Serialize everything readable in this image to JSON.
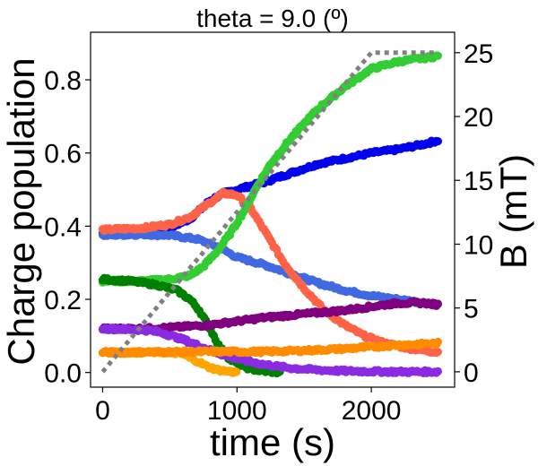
{
  "chart_data": {
    "type": "scatter",
    "title": "theta = 9.0 (º)",
    "xlabel": "time (s)",
    "ylabel": "Charge population",
    "y2label": "B (mT)",
    "xlim": [
      -90,
      2620
    ],
    "ylim": [
      -0.04,
      0.93
    ],
    "y2lim": [
      -1.2,
      26.6
    ],
    "xticks": [
      0,
      1000,
      2000
    ],
    "yticks": [
      0.0,
      0.2,
      0.4,
      0.6,
      0.8
    ],
    "y2ticks": [
      0,
      5,
      10,
      15,
      20,
      25
    ],
    "xtick_labels": [
      "0",
      "1000",
      "2000"
    ],
    "ytick_labels": [
      "0.0",
      "0.2",
      "0.4",
      "0.6",
      "0.8"
    ],
    "y2tick_labels": [
      "0",
      "5",
      "10",
      "15",
      "20",
      "25"
    ],
    "field_ramp": {
      "name": "B (mT)",
      "axis": "right",
      "style": "dotted",
      "color": "#808080",
      "x": [
        0,
        1000,
        2000,
        2500
      ],
      "y": [
        0,
        12.5,
        25,
        25
      ]
    },
    "series": [
      {
        "name": "blue",
        "color": "#0000ee",
        "x": [
          0,
          300,
          500,
          650,
          800,
          900,
          1000,
          1200,
          1400,
          1600,
          1800,
          2000,
          2200,
          2400,
          2500
        ],
        "y": [
          0.38,
          0.385,
          0.395,
          0.42,
          0.47,
          0.49,
          0.5,
          0.52,
          0.545,
          0.57,
          0.585,
          0.6,
          0.61,
          0.625,
          0.635
        ]
      },
      {
        "name": "royalblue",
        "color": "#4169e1",
        "x": [
          0,
          300,
          500,
          700,
          850,
          1000,
          1200,
          1400,
          1600,
          1800,
          2000,
          2200,
          2400,
          2500
        ],
        "y": [
          0.375,
          0.378,
          0.375,
          0.365,
          0.345,
          0.315,
          0.295,
          0.27,
          0.245,
          0.225,
          0.21,
          0.2,
          0.19,
          0.185
        ]
      },
      {
        "name": "tomato",
        "color": "#ff6347",
        "x": [
          0,
          300,
          500,
          650,
          800,
          900,
          1000,
          1100,
          1200,
          1350,
          1500,
          1650,
          1800,
          1950,
          2100,
          2300,
          2500
        ],
        "y": [
          0.39,
          0.395,
          0.405,
          0.425,
          0.465,
          0.49,
          0.485,
          0.45,
          0.39,
          0.3,
          0.23,
          0.17,
          0.13,
          0.1,
          0.08,
          0.065,
          0.055
        ]
      },
      {
        "name": "limegreen",
        "color": "#32cd32",
        "x": [
          0,
          300,
          500,
          650,
          750,
          850,
          950,
          1050,
          1150,
          1250,
          1400,
          1600,
          1800,
          2000,
          2200,
          2400,
          2500
        ],
        "y": [
          0.25,
          0.25,
          0.255,
          0.265,
          0.29,
          0.33,
          0.38,
          0.44,
          0.51,
          0.57,
          0.64,
          0.72,
          0.78,
          0.83,
          0.85,
          0.86,
          0.865
        ]
      },
      {
        "name": "green",
        "color": "#008000",
        "x": [
          0,
          200,
          400,
          550,
          650,
          720,
          800,
          870,
          950,
          1050,
          1150,
          1250,
          1330
        ],
        "y": [
          0.255,
          0.25,
          0.24,
          0.225,
          0.2,
          0.17,
          0.12,
          0.07,
          0.035,
          0.015,
          0.006,
          0.002,
          0.0
        ]
      },
      {
        "name": "purple",
        "color": "#800080",
        "x": [
          0,
          300,
          500,
          800,
          1000,
          1200,
          1500,
          1800,
          2000,
          2200,
          2400,
          2500
        ],
        "y": [
          0.12,
          0.12,
          0.123,
          0.13,
          0.14,
          0.15,
          0.16,
          0.17,
          0.18,
          0.19,
          0.19,
          0.185
        ]
      },
      {
        "name": "blueviolet",
        "color": "#8a2be2",
        "x": [
          0,
          200,
          350,
          450,
          600,
          750,
          900,
          1050,
          1200,
          1400,
          1600,
          1800,
          2000,
          2200,
          2400,
          2500
        ],
        "y": [
          0.12,
          0.118,
          0.115,
          0.108,
          0.09,
          0.068,
          0.048,
          0.033,
          0.022,
          0.012,
          0.007,
          0.004,
          0.003,
          0.002,
          0.002,
          0.002
        ]
      },
      {
        "name": "orange",
        "color": "#ffa500",
        "x": [
          0,
          300,
          500,
          600,
          650,
          720,
          780,
          850,
          930,
          1000
        ],
        "y": [
          0.055,
          0.055,
          0.055,
          0.05,
          0.04,
          0.028,
          0.016,
          0.008,
          0.003,
          0.001
        ]
      },
      {
        "name": "darkorange",
        "color": "#ff8c00",
        "x": [
          0,
          400,
          800,
          1200,
          1500,
          1800,
          2000,
          2200,
          2400,
          2500
        ],
        "y": [
          0.055,
          0.056,
          0.057,
          0.057,
          0.06,
          0.065,
          0.07,
          0.075,
          0.078,
          0.08
        ]
      }
    ]
  }
}
